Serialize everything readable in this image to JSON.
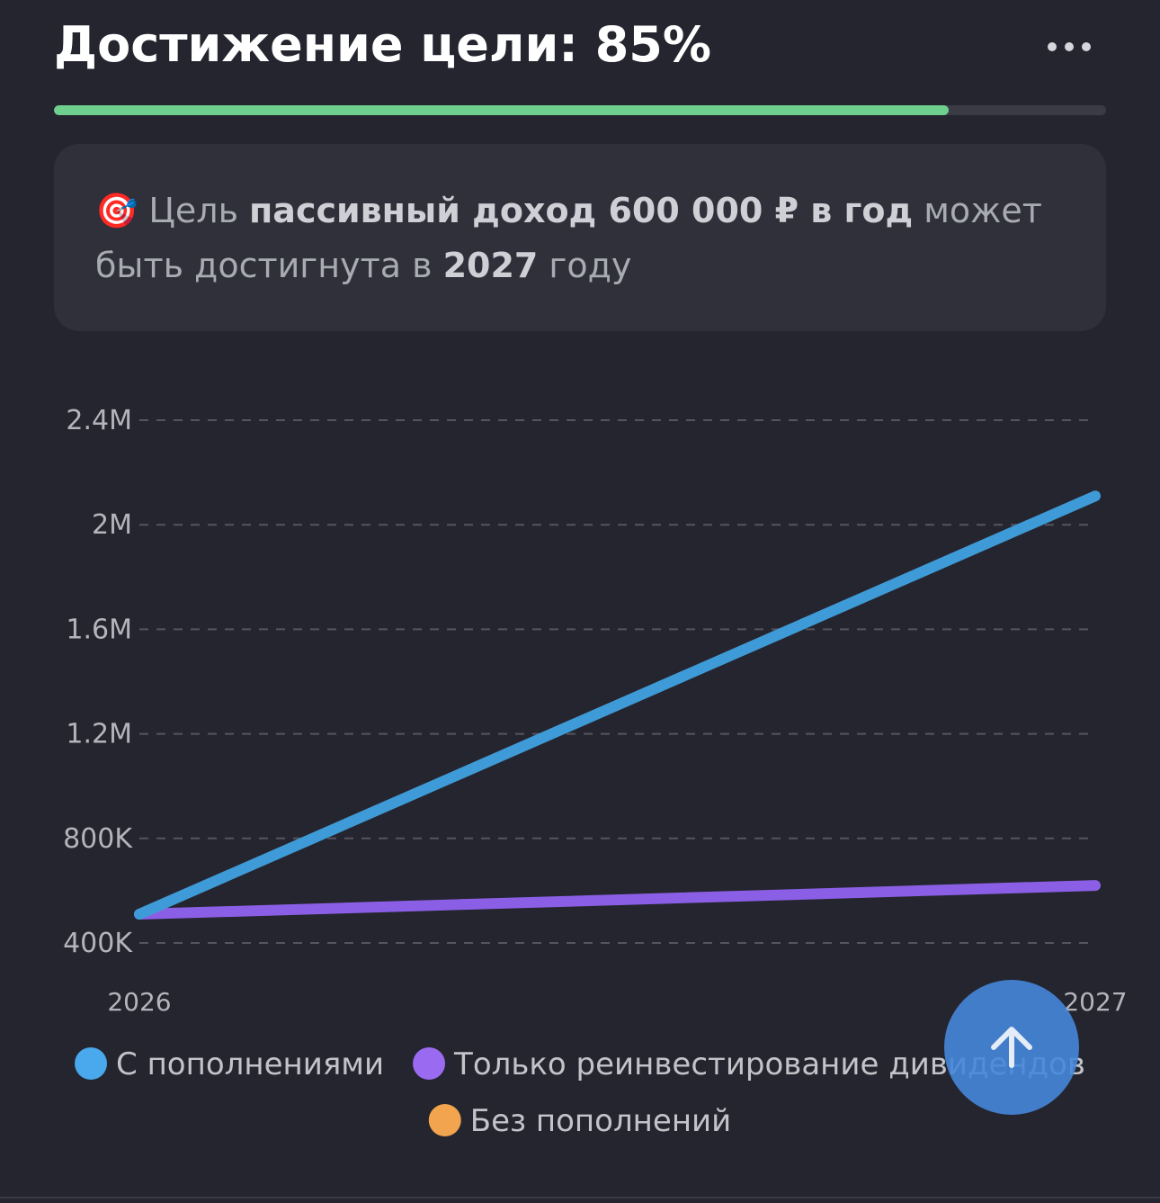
{
  "header": {
    "title": "Достижение цели: 85%",
    "progress": 85
  },
  "info": {
    "parts": [
      {
        "text": "🎯 Цель ",
        "bold": false
      },
      {
        "text": "пассивный доход 600 000 ₽ в год",
        "bold": true
      },
      {
        "text": " может быть достигнута в ",
        "bold": false
      },
      {
        "text": "2027",
        "bold": true
      },
      {
        "text": " году",
        "bold": false
      }
    ]
  },
  "chart_data": {
    "type": "line",
    "categories": [
      "2026",
      "2027"
    ],
    "series": [
      {
        "name": "С пополнениями",
        "color": "#3f9bd8",
        "legend_color": "#4aa8ec",
        "values": [
          510000,
          2110000
        ]
      },
      {
        "name": "Только реинвестирование дивидендов",
        "color": "#8a5fe6",
        "legend_color": "#9a6af0",
        "values": [
          510000,
          620000
        ]
      },
      {
        "name": "Без пополнений",
        "color": "#f2a44e",
        "legend_color": "#f2a44e",
        "values": [
          null,
          null
        ]
      }
    ],
    "ylim": [
      400000,
      2400000
    ],
    "yticks": [
      {
        "value": 400000,
        "label": "400K"
      },
      {
        "value": 800000,
        "label": "800K"
      },
      {
        "value": 1200000,
        "label": "1.2M"
      },
      {
        "value": 1600000,
        "label": "1.6M"
      },
      {
        "value": 2000000,
        "label": "2M"
      },
      {
        "value": 2400000,
        "label": "2.4M"
      }
    ],
    "grid": true
  }
}
